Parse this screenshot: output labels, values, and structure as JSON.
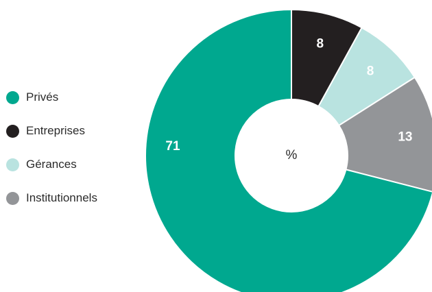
{
  "chart_data": {
    "type": "pie",
    "center_label": "%",
    "legend_position": "left",
    "slices": [
      {
        "name": "Entreprises",
        "value": 8,
        "label": "8",
        "color": "#231f20",
        "label_color": "#ffffff"
      },
      {
        "name": "Gérances",
        "value": 8,
        "label": "8",
        "color": "#b9e3e0",
        "label_color": "#ffffff"
      },
      {
        "name": "Institutionnels",
        "value": 13,
        "label": "13",
        "color": "#939598",
        "label_color": "#ffffff"
      },
      {
        "name": "Privés",
        "value": 71,
        "label": "71",
        "color": "#00a88f",
        "label_color": "#ffffff"
      }
    ]
  },
  "legend": {
    "items": [
      {
        "label": "Privés",
        "color": "#00a88f"
      },
      {
        "label": "Entreprises",
        "color": "#231f20"
      },
      {
        "label": "Gérances",
        "color": "#b9e3e0"
      },
      {
        "label": "Institutionnels",
        "color": "#939598"
      }
    ]
  }
}
